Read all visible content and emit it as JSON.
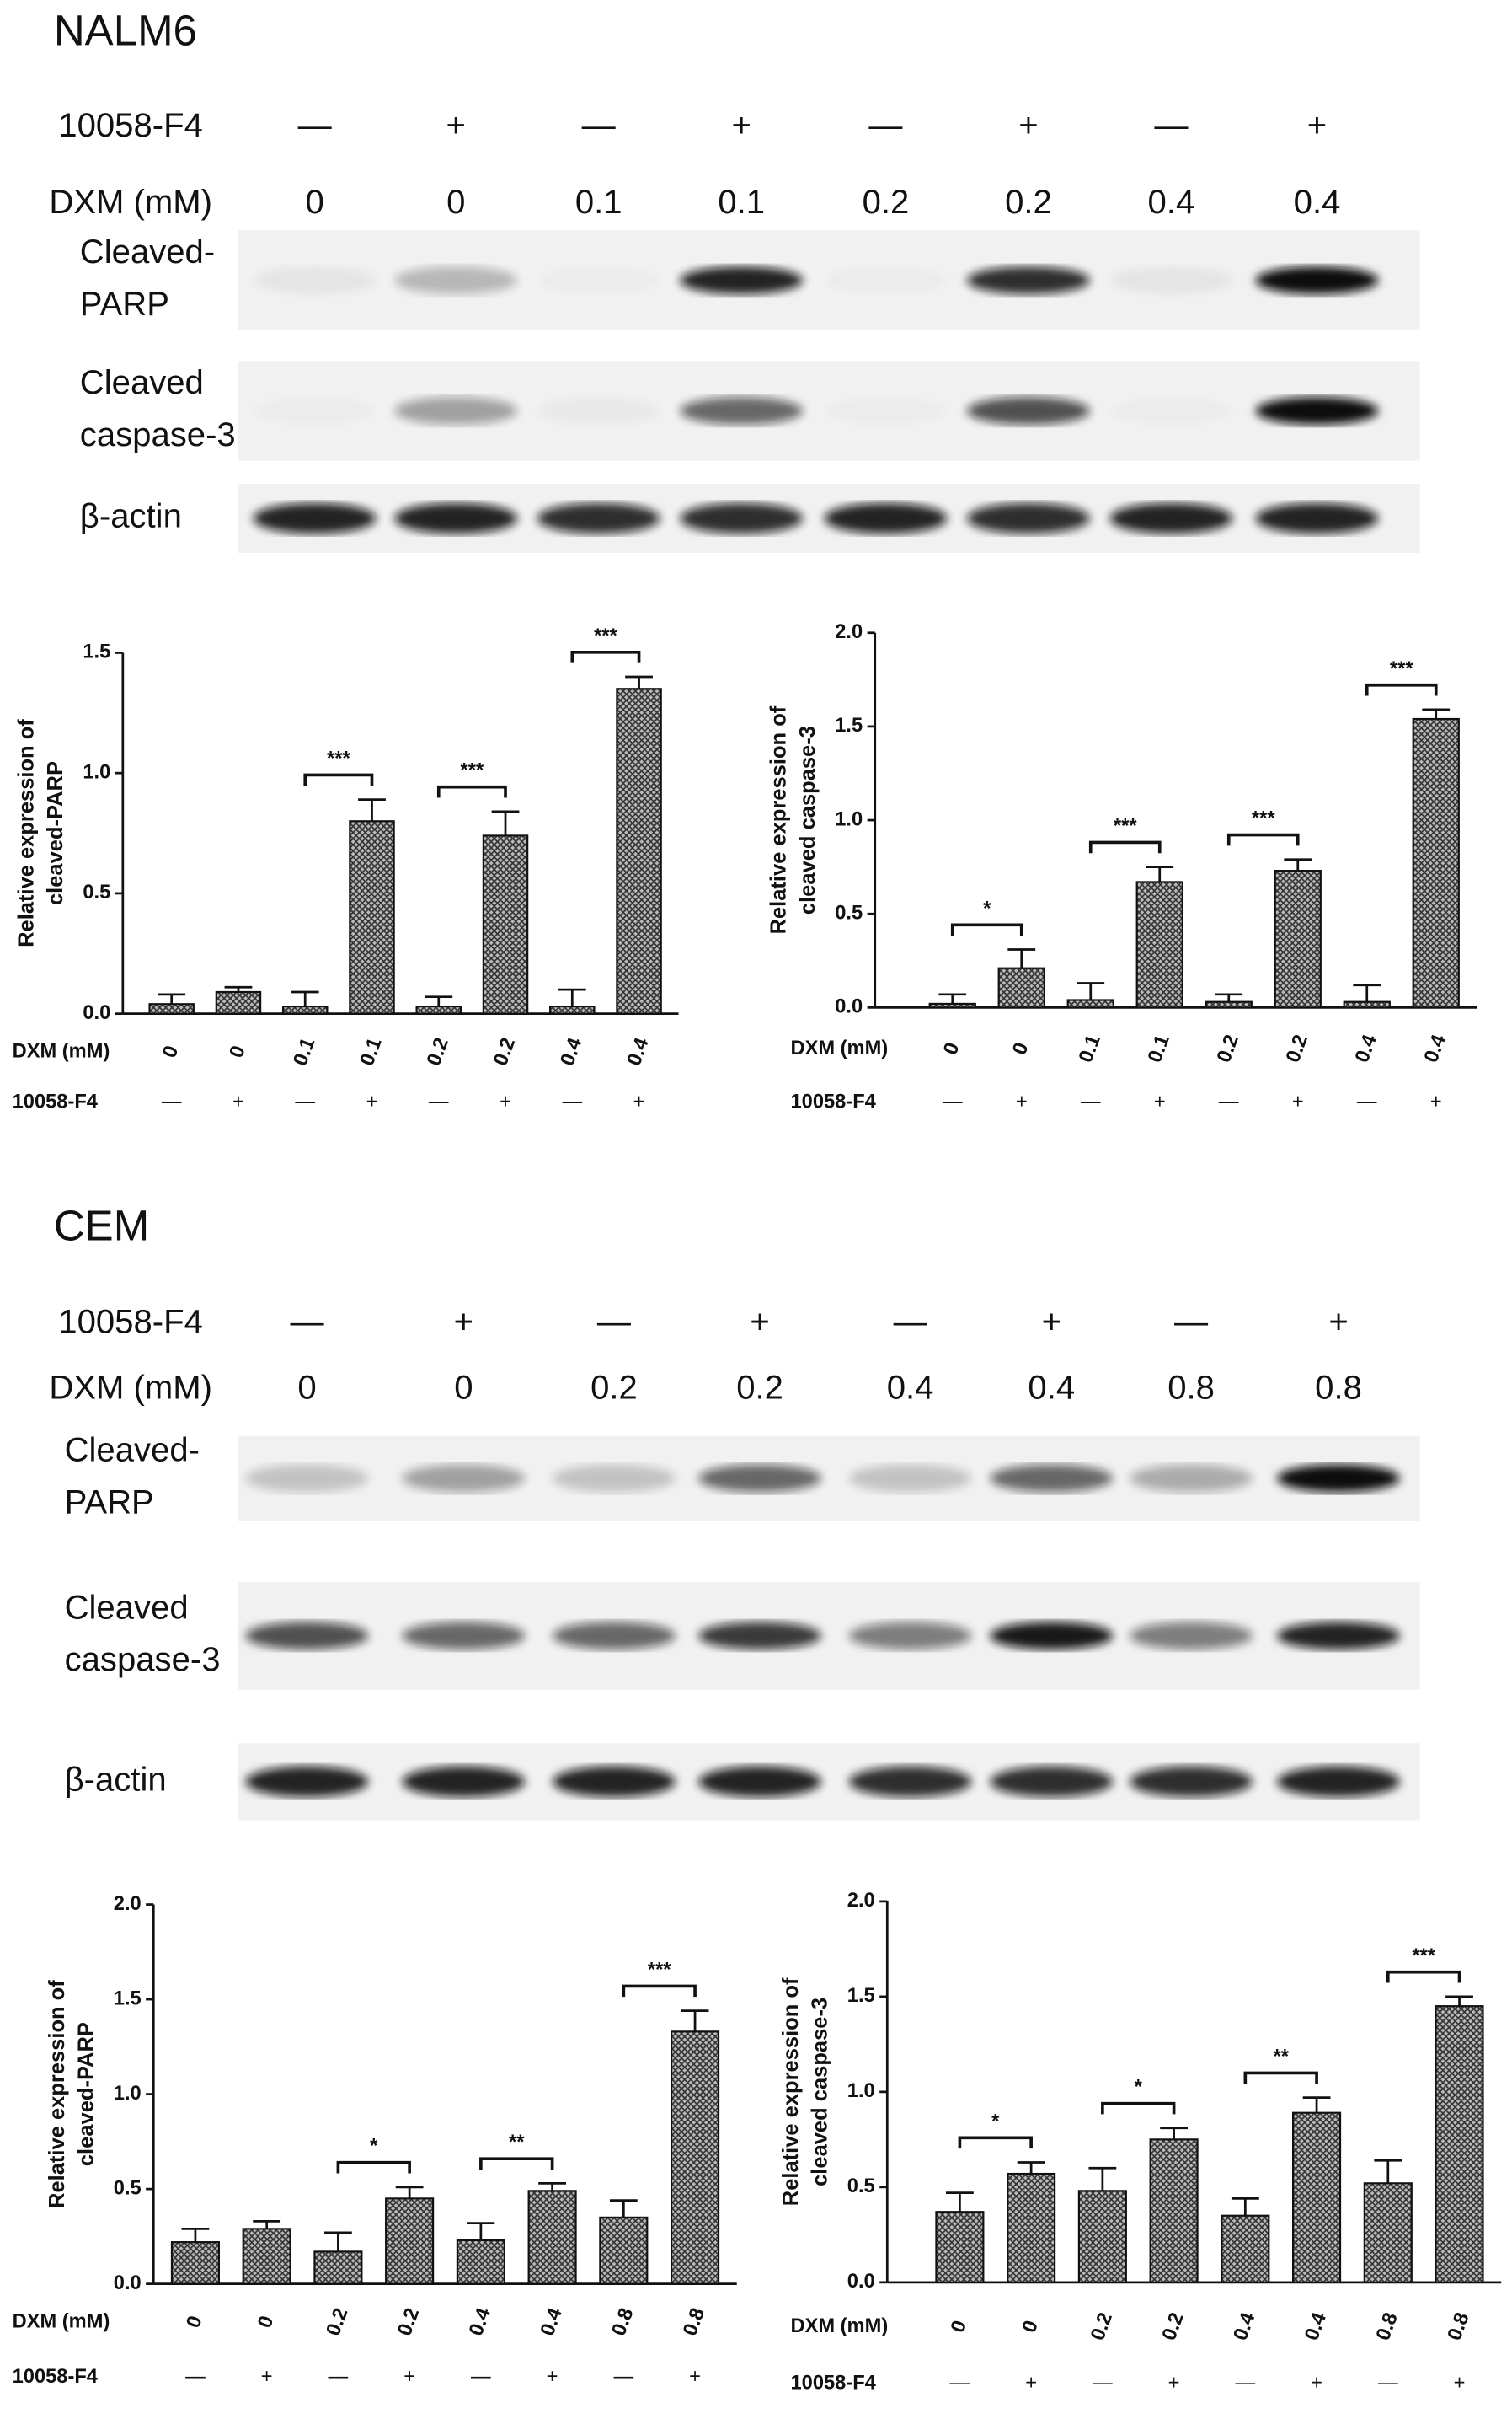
{
  "blots": [
    {
      "title": "NALM6",
      "treatment_label": "10058-F4",
      "treatment": [
        "—",
        "+",
        "—",
        "+",
        "—",
        "+",
        "—",
        "+"
      ],
      "dose_label": "DXM (mM)",
      "doses": [
        "0",
        "0",
        "0.1",
        "0.1",
        "0.2",
        "0.2",
        "0.4",
        "0.4"
      ],
      "rows": [
        [
          "Cleaved-",
          "PARP"
        ],
        [
          "Cleaved",
          "caspase-3"
        ],
        [
          "β-actin"
        ]
      ]
    },
    {
      "title": "CEM",
      "treatment_label": "10058-F4",
      "treatment": [
        "—",
        "+",
        "—",
        "+",
        "—",
        "+",
        "—",
        "+"
      ],
      "dose_label": "DXM (mM)",
      "doses": [
        "0",
        "0",
        "0.2",
        "0.2",
        "0.4",
        "0.4",
        "0.8",
        "0.8"
      ],
      "rows": [
        [
          "Cleaved-",
          "PARP"
        ],
        [
          "Cleaved",
          "caspase-3"
        ],
        [
          "β-actin"
        ]
      ]
    }
  ],
  "chart_data": [
    {
      "type": "bar",
      "y_label": [
        "Relative expression of",
        "cleaved-PARP"
      ],
      "x_label": "DXM (mM)",
      "categories": [
        "0",
        "0",
        "0.1",
        "0.1",
        "0.2",
        "0.2",
        "0.4",
        "0.4"
      ],
      "treatment_label": "10058-F4",
      "treatment": [
        "—",
        "+",
        "—",
        "+",
        "—",
        "+",
        "—",
        "+"
      ],
      "values": [
        0.04,
        0.09,
        0.03,
        0.8,
        0.03,
        0.74,
        0.03,
        1.35
      ],
      "errors": [
        0.04,
        0.02,
        0.06,
        0.09,
        0.04,
        0.1,
        0.07,
        0.05
      ],
      "significance": [
        null,
        "***",
        "***",
        "***"
      ],
      "ylim": [
        0,
        1.5
      ],
      "yticks": [
        {
          "value": 0,
          "label": "0.0"
        },
        0.5,
        {
          "value": 1,
          "label": "1.0"
        },
        1.5
      ]
    },
    {
      "type": "bar",
      "y_label": [
        "Relative expression of",
        "cleaved caspase-3"
      ],
      "x_label": "DXM (mM)",
      "categories": [
        "0",
        "0",
        "0.1",
        "0.1",
        "0.2",
        "0.2",
        "0.4",
        "0.4"
      ],
      "treatment_label": "10058-F4",
      "treatment": [
        "—",
        "+",
        "—",
        "+",
        "—",
        "+",
        "—",
        "+"
      ],
      "values": [
        0.02,
        0.21,
        0.04,
        0.67,
        0.03,
        0.73,
        0.03,
        1.54
      ],
      "errors": [
        0.05,
        0.1,
        0.09,
        0.08,
        0.04,
        0.06,
        0.09,
        0.05
      ],
      "significance": [
        "*",
        "***",
        "***",
        "***"
      ],
      "ylim": [
        0,
        2
      ],
      "yticks": [
        {
          "value": 0,
          "label": "0.0"
        },
        0.5,
        {
          "value": 1,
          "label": "1.0"
        },
        1.5,
        {
          "value": 2,
          "label": "2.0"
        }
      ]
    },
    {
      "type": "bar",
      "y_label": [
        "Relative expression of",
        "cleaved-PARP"
      ],
      "x_label": "DXM (mM)",
      "categories": [
        "0",
        "0",
        "0.2",
        "0.2",
        "0.4",
        "0.4",
        "0.8",
        "0.8"
      ],
      "treatment_label": "10058-F4",
      "treatment": [
        "—",
        "+",
        "—",
        "+",
        "—",
        "+",
        "—",
        "+"
      ],
      "values": [
        0.22,
        0.29,
        0.17,
        0.45,
        0.23,
        0.49,
        0.35,
        1.33
      ],
      "errors": [
        0.07,
        0.04,
        0.1,
        0.06,
        0.09,
        0.04,
        0.09,
        0.11
      ],
      "significance": [
        null,
        "*",
        "**",
        "***"
      ],
      "ylim": [
        0,
        2
      ],
      "yticks": [
        {
          "value": 0,
          "label": "0.0"
        },
        0.5,
        {
          "value": 1,
          "label": "1.0"
        },
        1.5,
        {
          "value": 2,
          "label": "2.0"
        }
      ]
    },
    {
      "type": "bar",
      "y_label": [
        "Relative expression of",
        "cleaved caspase-3"
      ],
      "x_label": "DXM (mM)",
      "categories": [
        "0",
        "0",
        "0.2",
        "0.2",
        "0.4",
        "0.4",
        "0.8",
        "0.8"
      ],
      "treatment_label": "10058-F4",
      "treatment": [
        "—",
        "+",
        "—",
        "+",
        "—",
        "+",
        "—",
        "+"
      ],
      "values": [
        0.37,
        0.57,
        0.48,
        0.75,
        0.35,
        0.89,
        0.52,
        1.45
      ],
      "errors": [
        0.1,
        0.06,
        0.12,
        0.06,
        0.09,
        0.08,
        0.12,
        0.05
      ],
      "significance": [
        "*",
        "*",
        "**",
        "***"
      ],
      "ylim": [
        0,
        2
      ],
      "yticks": [
        {
          "value": 0,
          "label": "0.0"
        },
        0.5,
        {
          "value": 1,
          "label": "1.0"
        },
        1.5,
        {
          "value": 2,
          "label": "2.0"
        }
      ]
    }
  ]
}
